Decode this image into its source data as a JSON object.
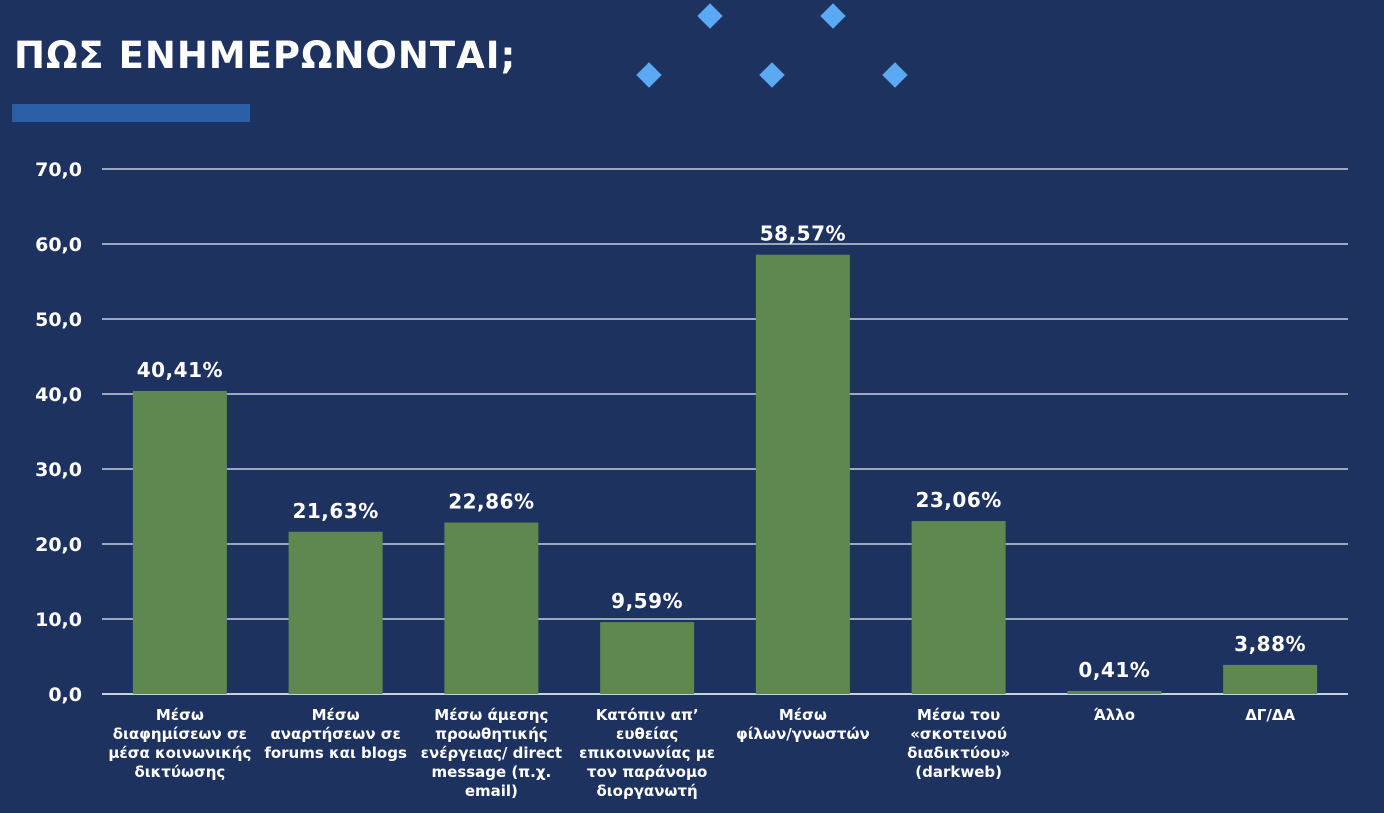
{
  "slide": {
    "title": "ΠΩΣ ΕΝΗΜΕΡΩΝΟΝΤΑΙ;"
  },
  "colors": {
    "background": "#1e3260",
    "bar": "#5f8750",
    "accent": "#2a5fa6",
    "diamond": "#5aa9f2",
    "text": "#ffffff",
    "grid": "#c9cfdc"
  },
  "chart_data": {
    "type": "bar",
    "title": "",
    "xlabel": "",
    "ylabel": "",
    "ylim": [
      0,
      70
    ],
    "yticks": [
      "0,0",
      "10,0",
      "20,0",
      "30,0",
      "40,0",
      "50,0",
      "60,0",
      "70,0"
    ],
    "grid": true,
    "legend": "none",
    "categories": [
      "Μέσω διαφημίσεων σε μέσα κοινωνικής δικτύωσης",
      "Μέσω αναρτήσεων σε forums και blogs",
      "Μέσω άμεσης προωθητικής ενέργειας/ direct message (π.χ. email)",
      "Κατόπιν απ’ ευθείας επικοινωνίας με τον παράνομο διοργανωτή",
      "Μέσω φίλων/γνωστών",
      "Μέσω του «σκοτεινού διαδικτύου» (darkweb)",
      "Άλλο",
      "ΔΓ/ΔΑ"
    ],
    "category_lines": [
      "Μέσω\nδιαφημίσεων σε\nμέσα κοινωνικής\nδικτύωσης",
      "Μέσω\nαναρτήσεων σε\nforums και blogs",
      "Μέσω άμεσης\nπροωθητικής\nενέργειας/ direct\nmessage (π.χ.\nemail)",
      "Κατόπιν απ’\nευθείας\nεπικοινωνίας με\nτον παράνομο\nδιοργανωτή",
      "Μέσω\nφίλων/γνωστών",
      "Μέσω του\n«σκοτεινού\nδιαδικτύου»\n(darkweb)",
      "Άλλο",
      "ΔΓ/ΔΑ"
    ],
    "values": [
      40.41,
      21.63,
      22.86,
      9.59,
      58.57,
      23.06,
      0.41,
      3.88
    ],
    "value_labels": [
      "40,41%",
      "21,63%",
      "22,86%",
      "9,59%",
      "58,57%",
      "23,06%",
      "0,41%",
      "3,88%"
    ]
  }
}
